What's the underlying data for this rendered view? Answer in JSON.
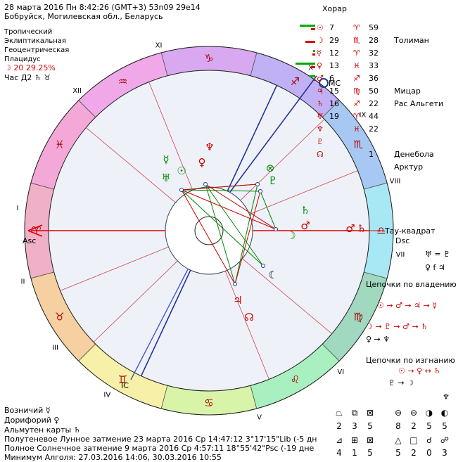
{
  "header": {
    "line1": "28 марта 2016  Пн   8:42:26 (GMT+3) 53n09  29e14",
    "line2": "Бобруйск, Могилевская обл., Беларусь",
    "chart_name": "Хорар"
  },
  "settings": {
    "zodiac": "Тропический",
    "coords": "Эклиптикальная",
    "center": "Геоцентрическая",
    "houses": "Плацидус",
    "moon_phase": "☽  20 29.25%",
    "hour": "Час Д2 ♄ ♉"
  },
  "planets": [
    {
      "glyph": "☉",
      "deg": "7",
      "sign": "♈",
      "min": "59",
      "bar_green": 22,
      "bar_red": 6,
      "bar_color": "red",
      "star": ""
    },
    {
      "glyph": "☽",
      "deg": "29",
      "sign": "♏",
      "min": "28",
      "bar_green": 0,
      "bar_red": 14,
      "bar_color": "red",
      "star": "Толиман"
    },
    {
      "glyph": "☿",
      "deg": "12",
      "sign": "♈",
      "min": "32",
      "bar_green": 3,
      "bar_red": 4,
      "bar_color": "red",
      "star": ""
    },
    {
      "glyph": "♀",
      "deg": "13",
      "sign": "♓",
      "min": "33",
      "bar_green": 35,
      "bar_red": 6,
      "bar_color": "green",
      "star": ""
    },
    {
      "glyph": "♂",
      "deg": "6",
      "sign": "♐",
      "min": "36",
      "bar_green": 8,
      "bar_red": 2,
      "bar_color": "red",
      "star": ""
    },
    {
      "glyph": "♃",
      "deg": "15",
      "sign": "♍",
      "min": "50",
      "bar_green": 0,
      "bar_red": 0,
      "bar_color": "red",
      "star": "Мицар"
    },
    {
      "glyph": "♄",
      "deg": "16",
      "sign": "♐",
      "min": "22",
      "bar_green": 0,
      "bar_red": 0,
      "bar_color": "red",
      "star": "Рас Альгети"
    },
    {
      "glyph": "♅",
      "deg": "19",
      "sign": "♈",
      "min": "44",
      "bar_green": 0,
      "bar_red": 0,
      "bar_color": "red",
      "star": ""
    },
    {
      "glyph": "♆",
      "deg": "",
      "sign": "♓",
      "min": "22",
      "bar_green": 0,
      "bar_red": 0,
      "bar_color": "red",
      "star": ""
    },
    {
      "glyph": "♇",
      "deg": "",
      "sign": "",
      "min": "",
      "bar_green": 0,
      "bar_red": 0,
      "bar_color": "red",
      "star": ""
    },
    {
      "glyph": "☊",
      "deg": "",
      "sign": "",
      "min": "1",
      "bar_green": 0,
      "bar_red": 0,
      "bar_color": "red",
      "star": "Денебола"
    },
    {
      "glyph": "",
      "deg": "",
      "sign": "",
      "min": "",
      "bar_green": 0,
      "bar_red": 0,
      "bar_color": "red",
      "star": "Арктур"
    }
  ],
  "tau_square": "Тау-квадрат",
  "relations": [
    "♅ = ♇",
    "♀ f ♃"
  ],
  "chains_rulership": {
    "title": "Цепочки по владению",
    "row1": "☉ → ♂ → ♃ → ☿",
    "row2": "☽ → ♇ → ♂ → ♄",
    "row3": "♀ → ♆"
  },
  "chains_exile": {
    "title": "Цепочки по изгнанию",
    "row1": "☉ → ♀ ↔ ♄",
    "row2": "♇ → ☽",
    "row3": "♆"
  },
  "footer": {
    "vozn": "Возничий  ☿",
    "dorif": "Дорифорий  ♀",
    "almuten": "Альмутен карты  ♄",
    "eclipse_lunar": "Полутеневое Лунное затмение 23 марта 2016 Ср 14:47:12  3°17'15\"Lib (-5 дн",
    "eclipse_solar": "Полное Солнечное затмение 9 марта 2016 Ср  4:57:11 18°55'42\"Psc (-19 дне",
    "algol": "Минимум Алголя: 27.03.2016 14:06, 30.03.2016 10:55"
  },
  "stats": {
    "top_symbols": [
      "⏢",
      "⧉",
      "⊠",
      "⊖",
      "⊖",
      "◑",
      "◐"
    ],
    "top_numbers": [
      "2",
      "3",
      "5",
      "8",
      "2",
      "5",
      "5"
    ],
    "bottom_symbols": [
      "⊿",
      "⊞",
      "⊠",
      "△",
      "□",
      "☌",
      "☍"
    ],
    "bottom_numbers": [
      "4",
      "1",
      "5",
      "5",
      "2",
      "0",
      "3"
    ]
  },
  "wheel": {
    "asc_label": "Asc",
    "dsc_label": "Dsc",
    "mc_label": "MC",
    "ic_label": "IC",
    "house_numerals": [
      "I",
      "II",
      "III",
      "IV",
      "V",
      "VI",
      "VII",
      "VIII",
      "IX",
      "X",
      "XI",
      "XII"
    ],
    "signs": [
      "♈",
      "♉",
      "♊",
      "♋",
      "♌",
      "♍",
      "♎",
      "♏",
      "♐",
      "♑",
      "♒",
      "♓"
    ],
    "sign_colors": [
      "#f0b0c8",
      "#f6d0a0",
      "#f6f0a8",
      "#d8f4a8",
      "#a8f0c0",
      "#a0d8c0",
      "#a8e8f4",
      "#a8c8f4",
      "#c0b0f4",
      "#d8a8f0",
      "#f0a8e8",
      "#f4a8d8"
    ]
  }
}
